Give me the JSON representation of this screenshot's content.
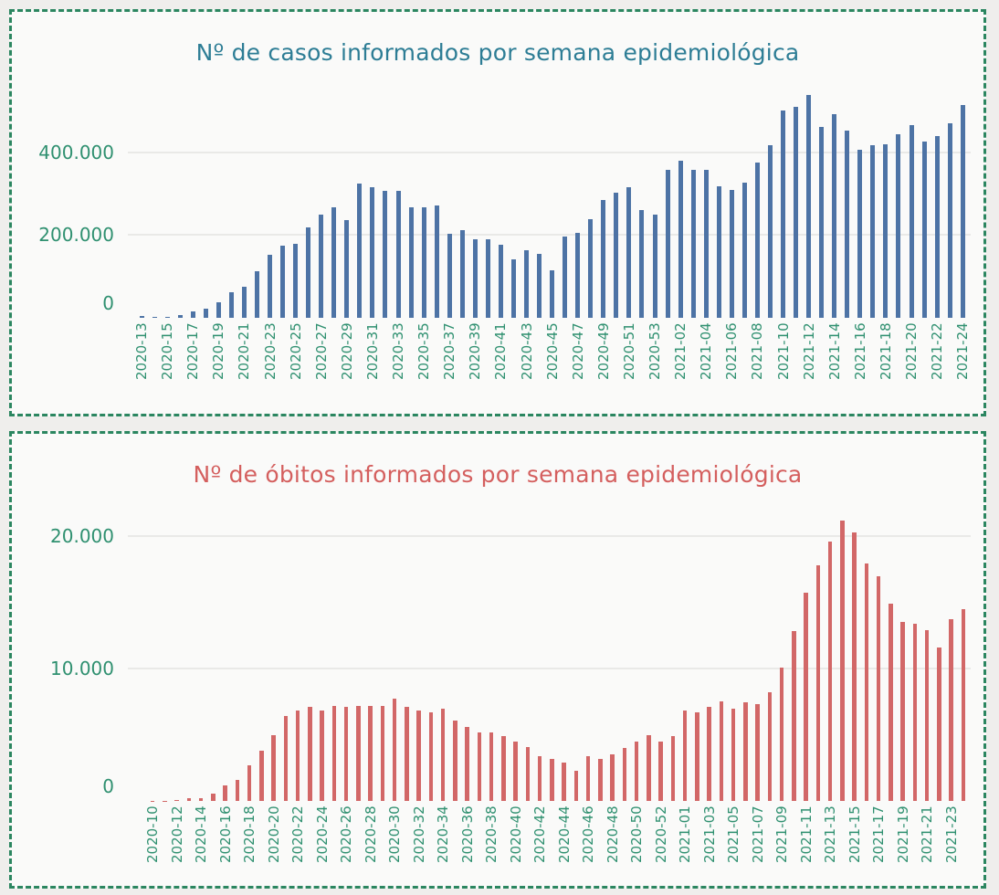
{
  "page": {
    "background_color": "#efeeec",
    "panel_background_color": "#fafaf9",
    "panel_border_color": "#2b8660",
    "gridline_color": "#e9e9e7"
  },
  "chart_data": [
    {
      "type": "bar",
      "title": "Nº de casos informados por semana epidemiológica",
      "title_color": "#2d7d95",
      "bar_color": "#4d73a5",
      "axis_label_color": "#2f9070",
      "legend": "none",
      "grid": true,
      "xlabel": "",
      "ylabel": "",
      "ylim": [
        0,
        600000
      ],
      "yticks": [
        {
          "value": 0,
          "label": "0"
        },
        {
          "value": 200000,
          "label": "200.000"
        },
        {
          "value": 400000,
          "label": "400.000"
        }
      ],
      "label_every": 2,
      "categories": [
        "2020-13",
        "2020-14",
        "2020-15",
        "2020-16",
        "2020-17",
        "2020-18",
        "2020-19",
        "2020-20",
        "2020-21",
        "2020-22",
        "2020-23",
        "2020-24",
        "2020-25",
        "2020-26",
        "2020-27",
        "2020-28",
        "2020-29",
        "2020-30",
        "2020-31",
        "2020-32",
        "2020-33",
        "2020-34",
        "2020-35",
        "2020-36",
        "2020-37",
        "2020-38",
        "2020-39",
        "2020-40",
        "2020-41",
        "2020-42",
        "2020-43",
        "2020-44",
        "2020-45",
        "2020-46",
        "2020-47",
        "2020-48",
        "2020-49",
        "2020-50",
        "2020-51",
        "2020-52",
        "2020-53",
        "2021-01",
        "2021-02",
        "2021-03",
        "2021-04",
        "2021-05",
        "2021-06",
        "2021-07",
        "2021-08",
        "2021-09",
        "2021-10",
        "2021-11",
        "2021-12",
        "2021-13",
        "2021-14",
        "2021-15",
        "2021-16",
        "2021-17",
        "2021-18",
        "2021-19",
        "2021-20",
        "2021-21",
        "2021-22",
        "2021-23",
        "2021-24"
      ],
      "values": [
        4000,
        2000,
        2500,
        7000,
        15000,
        22000,
        38000,
        61000,
        76000,
        113000,
        153000,
        174000,
        179000,
        218000,
        250000,
        267000,
        236000,
        324000,
        315000,
        307000,
        307000,
        266000,
        266000,
        271000,
        204000,
        212000,
        189000,
        189000,
        177000,
        141000,
        164000,
        154000,
        114000,
        196000,
        205000,
        239000,
        285000,
        303000,
        315000,
        261000,
        249000,
        357000,
        379000,
        357000,
        357000,
        318000,
        308000,
        327000,
        376000,
        417000,
        501000,
        510000,
        539000,
        460000,
        492000,
        452000,
        406000,
        418000,
        420000,
        443000,
        465000,
        425000,
        438000,
        469000,
        515000
      ]
    },
    {
      "type": "bar",
      "title": "Nº de óbitos informados por semana epidemiológica",
      "title_color": "#d45f5e",
      "bar_color": "#d26767",
      "axis_label_color": "#2f9070",
      "legend": "none",
      "grid": true,
      "xlabel": "",
      "ylabel": "",
      "ylim": [
        0,
        22000
      ],
      "yticks": [
        {
          "value": 0,
          "label": "0"
        },
        {
          "value": 10000,
          "label": "10.000"
        },
        {
          "value": 20000,
          "label": "20.000"
        }
      ],
      "label_every": 2,
      "categories": [
        "2020-10",
        "2020-11",
        "2020-12",
        "2020-13",
        "2020-14",
        "2020-15",
        "2020-16",
        "2020-17",
        "2020-18",
        "2020-19",
        "2020-20",
        "2020-21",
        "2020-22",
        "2020-23",
        "2020-24",
        "2020-25",
        "2020-26",
        "2020-27",
        "2020-28",
        "2020-29",
        "2020-30",
        "2020-31",
        "2020-32",
        "2020-33",
        "2020-34",
        "2020-35",
        "2020-36",
        "2020-37",
        "2020-38",
        "2020-39",
        "2020-40",
        "2020-41",
        "2020-42",
        "2020-43",
        "2020-44",
        "2020-45",
        "2020-46",
        "2020-47",
        "2020-48",
        "2020-49",
        "2020-50",
        "2020-51",
        "2020-52",
        "2020-53",
        "2021-01",
        "2021-02",
        "2021-03",
        "2021-04",
        "2021-05",
        "2021-06",
        "2021-07",
        "2021-08",
        "2021-09",
        "2021-10",
        "2021-11",
        "2021-12",
        "2021-13",
        "2021-14",
        "2021-15",
        "2021-16",
        "2021-17",
        "2021-18",
        "2021-19",
        "2021-20",
        "2021-21",
        "2021-22",
        "2021-23",
        "2021-24"
      ],
      "values": [
        10,
        20,
        60,
        190,
        210,
        550,
        1200,
        1600,
        2700,
        3800,
        5000,
        6400,
        6800,
        7100,
        6800,
        7200,
        7100,
        7200,
        7150,
        7200,
        7700,
        7100,
        6800,
        6700,
        7000,
        6100,
        5600,
        5200,
        5200,
        4900,
        4500,
        4100,
        3400,
        3200,
        2900,
        2300,
        3400,
        3200,
        3500,
        4000,
        4500,
        5000,
        4500,
        4900,
        6800,
        6700,
        7100,
        7500,
        7000,
        7450,
        7300,
        8200,
        10100,
        12800,
        15700,
        17800,
        19600,
        21200,
        20300,
        17900,
        17000,
        14900,
        13500,
        13400,
        12900,
        11600,
        13700,
        14500
      ]
    }
  ]
}
